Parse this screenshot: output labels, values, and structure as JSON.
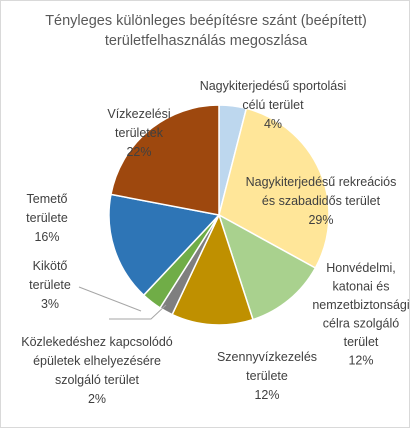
{
  "chart_data": {
    "type": "pie",
    "title": [
      "Tényleges különleges beépítésre szánt (beépített)",
      "területfelhasználás megoszlása"
    ],
    "slices": [
      {
        "lines": [
          "Nagykiterjedésű sportolási",
          "célú terület",
          "4%"
        ],
        "value": 4,
        "color": "#bdd7ee"
      },
      {
        "lines": [
          "Nagykiterjedésű rekreációs",
          "és szabadidős terület",
          "29%"
        ],
        "value": 29,
        "color": "#ffe699"
      },
      {
        "lines": [
          "Honvédelmi,",
          "katonai és",
          "nemzetbiztonsági",
          "célra szolgáló",
          "terület",
          "12%"
        ],
        "value": 12,
        "color": "#a9d18e"
      },
      {
        "lines": [
          "Szennyvízkezelés",
          "területe",
          "12%"
        ],
        "value": 12,
        "color": "#bf9000"
      },
      {
        "lines": [
          "Közlekedéshez kapcsolódó",
          "épületek elhelyezésére",
          "szolgáló terület",
          "2%"
        ],
        "value": 2,
        "color": "#7f7f7f"
      },
      {
        "lines": [
          "Kikötő",
          "területe",
          "3%"
        ],
        "value": 3,
        "color": "#70ad47"
      },
      {
        "lines": [
          "Temető",
          "területe",
          "16%"
        ],
        "value": 16,
        "color": "#2e75b6"
      },
      {
        "lines": [
          "Vízkezelési",
          "területek",
          "22%"
        ],
        "value": 22,
        "color": "#9e480e"
      }
    ]
  }
}
